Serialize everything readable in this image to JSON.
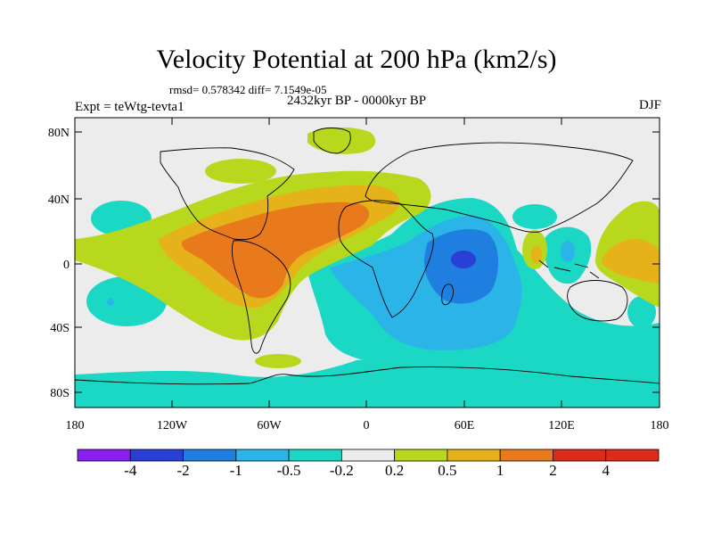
{
  "title": "Velocity Potential at 200 hPa (km2/s)",
  "stats": "rmsd= 0.578342 diff= 7.1549e-05",
  "left_label": "Expt = teWtg-tevta1",
  "center_label": "2432kyr BP - 0000kyr BP",
  "right_label": "DJF",
  "y_ticks": [
    "80N",
    "40N",
    "0",
    "40S",
    "80S"
  ],
  "x_ticks": [
    "180",
    "120W",
    "60W",
    "0",
    "60E",
    "120E",
    "180"
  ],
  "colorbar": {
    "labels": [
      "-4",
      "-2",
      "-1",
      "-0.5",
      "-0.2",
      "0.2",
      "0.5",
      "1",
      "2",
      "4"
    ],
    "colors": [
      "#8a1ef0",
      "#2a3fd6",
      "#1f7fe0",
      "#2bb4e8",
      "#1ad8c4",
      "#ececec",
      "#b8d81e",
      "#e6b21a",
      "#e87a1c",
      "#de2a18"
    ]
  },
  "colors": {
    "land_background": "#ececec",
    "coastline": "#000000"
  }
}
